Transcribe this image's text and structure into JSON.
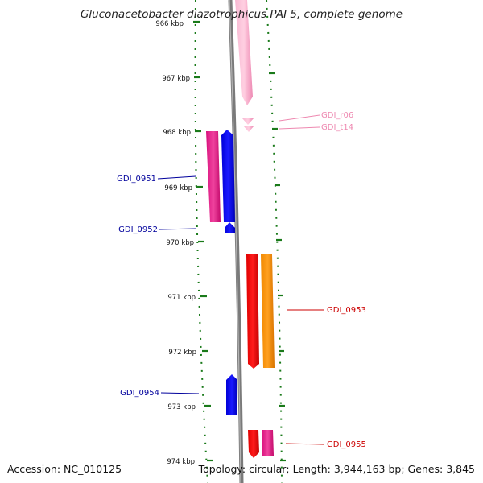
{
  "title": "Gluconacetobacter diazotrophicus PAI 5, complete genome",
  "footer": {
    "accession": "Accession: NC_010125",
    "topology": "Topology: circular; Length: 3,944,163 bp; Genes: 3,845"
  },
  "colors": {
    "backbone": "#7a7a7a",
    "tick": "#1a7a1a",
    "label_blue": "#00009c",
    "label_red": "#cc0000",
    "label_pink": "#ee88b0"
  },
  "ticks": [
    "966 kbp",
    "967 kbp",
    "968 kbp",
    "969 kbp",
    "970 kbp",
    "971 kbp",
    "972 kbp",
    "973 kbp",
    "974 kbp"
  ],
  "genes": [
    {
      "id": "GDI_r06",
      "color": "pink",
      "strand": "+",
      "label": "GDI_r06"
    },
    {
      "id": "GDI_t14",
      "color": "pink",
      "strand": "+",
      "label": "GDI_t14"
    },
    {
      "id": "GDI_0951",
      "color": "blue",
      "strand": "-",
      "label": "GDI_0951"
    },
    {
      "id": "GDI_0952",
      "color": "blue",
      "strand": "-",
      "label": "GDI_0952"
    },
    {
      "id": "GDI_0953",
      "color": "red",
      "strand": "+",
      "label": "GDI_0953"
    },
    {
      "id": "GDI_0954",
      "color": "blue",
      "strand": "-",
      "label": "GDI_0954"
    },
    {
      "id": "GDI_0955",
      "color": "red",
      "strand": "+",
      "label": "GDI_0955"
    }
  ]
}
